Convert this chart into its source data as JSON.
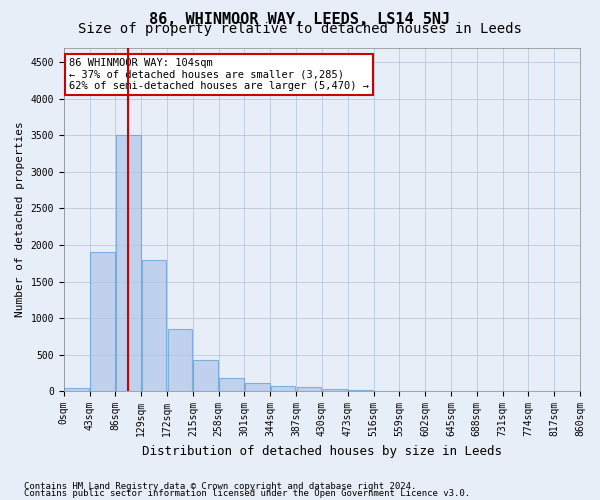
{
  "title": "86, WHINMOOR WAY, LEEDS, LS14 5NJ",
  "subtitle": "Size of property relative to detached houses in Leeds",
  "xlabel": "Distribution of detached houses by size in Leeds",
  "ylabel": "Number of detached properties",
  "bin_labels": [
    "0sqm",
    "43sqm",
    "86sqm",
    "129sqm",
    "172sqm",
    "215sqm",
    "258sqm",
    "301sqm",
    "344sqm",
    "387sqm",
    "430sqm",
    "473sqm",
    "516sqm",
    "559sqm",
    "602sqm",
    "645sqm",
    "688sqm",
    "731sqm",
    "774sqm",
    "817sqm",
    "860sqm"
  ],
  "bar_values": [
    50,
    1900,
    3500,
    1800,
    850,
    430,
    175,
    110,
    75,
    60,
    35,
    10,
    5,
    3,
    2,
    1,
    1,
    1,
    0,
    0
  ],
  "bar_color": "#aec6e8",
  "bar_edgecolor": "#5b9bd5",
  "bar_alpha": 0.7,
  "vline_x": 2.0,
  "vline_color": "#cc0000",
  "annotation_text": "86 WHINMOOR WAY: 104sqm\n← 37% of detached houses are smaller (3,285)\n62% of semi-detached houses are larger (5,470) →",
  "annotation_box_color": "#ffffff",
  "annotation_box_edgecolor": "#cc0000",
  "ylim": [
    0,
    4700
  ],
  "yticks": [
    0,
    500,
    1000,
    1500,
    2000,
    2500,
    3000,
    3500,
    4000,
    4500
  ],
  "footnote1": "Contains HM Land Registry data © Crown copyright and database right 2024.",
  "footnote2": "Contains public sector information licensed under the Open Government Licence v3.0.",
  "title_fontsize": 11,
  "subtitle_fontsize": 10,
  "ylabel_fontsize": 8,
  "xlabel_fontsize": 9,
  "tick_fontsize": 7,
  "annotation_fontsize": 7.5,
  "footnote_fontsize": 6.5,
  "background_color": "#e8eef8",
  "grid_color": "#b0c0d8"
}
